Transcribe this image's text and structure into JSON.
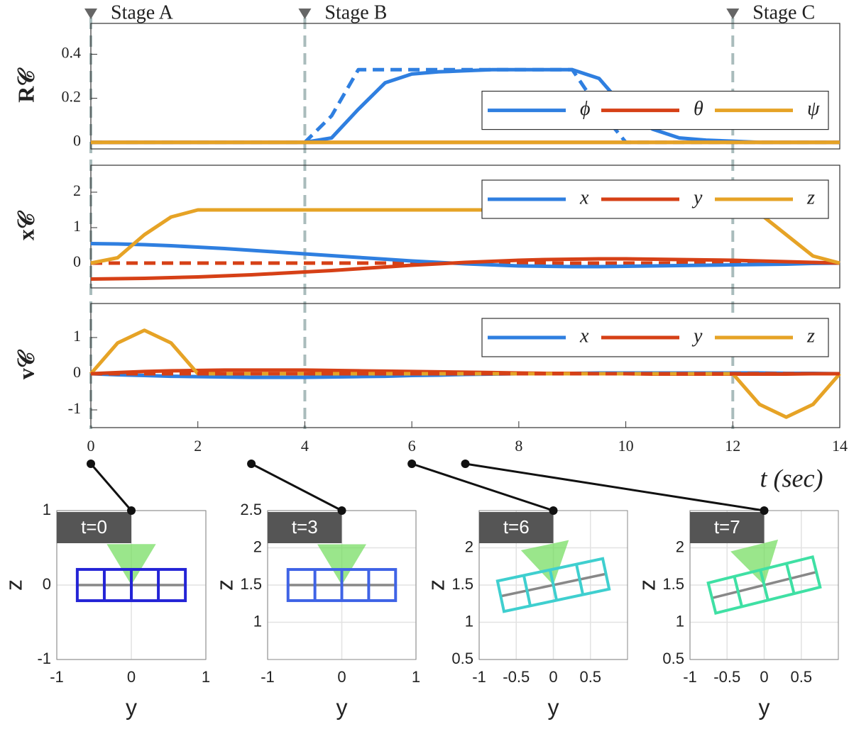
{
  "chart_data": [
    {
      "type": "line",
      "ylabel": "R𝒞",
      "xlim": [
        0,
        14
      ],
      "ylim": [
        -0.03,
        0.54
      ],
      "yticks": [
        0,
        0.2,
        0.4
      ],
      "legend": "center right",
      "stages": [
        {
          "label": "Stage A",
          "t": 0
        },
        {
          "label": "Stage B",
          "t": 4
        },
        {
          "label": "Stage C",
          "t": 12
        }
      ],
      "x": [
        0,
        0.5,
        1,
        1.5,
        2,
        2.5,
        3,
        3.5,
        4,
        4.5,
        5,
        5.5,
        6,
        6.5,
        7,
        7.5,
        8,
        8.5,
        9,
        9.5,
        10,
        10.5,
        11,
        11.5,
        12,
        12.5,
        13,
        13.5,
        14
      ],
      "series": [
        {
          "name": "ϕ",
          "color": "#2f7fe0",
          "values": [
            0,
            0,
            0,
            0,
            0,
            0,
            0,
            0,
            0,
            0.02,
            0.15,
            0.27,
            0.31,
            0.32,
            0.325,
            0.33,
            0.33,
            0.33,
            0.33,
            0.29,
            0.15,
            0.06,
            0.02,
            0.01,
            0.005,
            0,
            0,
            0,
            0
          ]
        },
        {
          "color": "#2f7fe0",
          "dashed": true,
          "values": [
            0,
            0,
            0,
            0,
            0,
            0,
            0,
            0,
            0,
            0.12,
            0.33,
            0.33,
            0.33,
            0.33,
            0.33,
            0.33,
            0.33,
            0.33,
            0.33,
            0.15,
            0,
            0,
            0,
            0,
            0,
            0,
            0,
            0,
            0
          ]
        },
        {
          "name": "θ",
          "color": "#d64016",
          "values": [
            0,
            0,
            0,
            0,
            0,
            0,
            0,
            0,
            0,
            0,
            0,
            0,
            0,
            0,
            0,
            0,
            0,
            0,
            0,
            0,
            0,
            0,
            0,
            0,
            0,
            0,
            0,
            0,
            0
          ]
        },
        {
          "name": "ψ",
          "color": "#e6a326",
          "values": [
            0,
            0,
            0,
            0,
            0,
            0,
            0,
            0,
            0,
            0,
            0,
            0,
            0,
            0,
            0,
            0,
            0,
            0,
            0,
            0,
            0,
            0,
            0,
            0,
            0,
            0,
            0,
            0,
            0
          ]
        }
      ]
    },
    {
      "type": "line",
      "ylabel": "x𝒞",
      "xlim": [
        0,
        14
      ],
      "ylim": [
        -0.7,
        2.76
      ],
      "yticks": [
        0,
        1,
        2
      ],
      "legend": "upper right",
      "x": [
        0,
        0.5,
        1,
        1.5,
        2,
        2.5,
        3,
        3.5,
        4,
        4.5,
        5,
        5.5,
        6,
        6.5,
        7,
        7.5,
        8,
        8.5,
        9,
        9.5,
        10,
        10.5,
        11,
        11.5,
        12,
        12.5,
        13,
        13.5,
        14
      ],
      "series": [
        {
          "color": "#d64016",
          "dashed": true,
          "values": [
            0,
            0,
            0,
            0,
            0,
            0,
            0,
            0,
            0,
            0,
            0,
            0,
            0,
            0,
            0,
            0,
            0,
            0,
            0,
            0,
            0,
            0,
            0,
            0,
            0,
            0,
            0,
            0,
            0
          ]
        },
        {
          "name": "x",
          "color": "#2f7fe0",
          "values": [
            0.55,
            0.54,
            0.52,
            0.49,
            0.45,
            0.41,
            0.36,
            0.31,
            0.26,
            0.21,
            0.16,
            0.11,
            0.06,
            0.02,
            -0.02,
            -0.05,
            -0.08,
            -0.09,
            -0.1,
            -0.1,
            -0.09,
            -0.08,
            -0.07,
            -0.06,
            -0.05,
            -0.04,
            -0.03,
            -0.01,
            0
          ]
        },
        {
          "name": "y",
          "color": "#d64016",
          "values": [
            -0.45,
            -0.44,
            -0.43,
            -0.41,
            -0.39,
            -0.36,
            -0.33,
            -0.29,
            -0.25,
            -0.21,
            -0.16,
            -0.11,
            -0.06,
            -0.02,
            0.02,
            0.05,
            0.08,
            0.1,
            0.11,
            0.12,
            0.12,
            0.11,
            0.1,
            0.09,
            0.08,
            0.06,
            0.04,
            0.02,
            0
          ]
        },
        {
          "name": "z",
          "color": "#e6a326",
          "values": [
            0,
            0.15,
            0.8,
            1.3,
            1.5,
            1.5,
            1.5,
            1.5,
            1.5,
            1.5,
            1.5,
            1.5,
            1.5,
            1.5,
            1.5,
            1.5,
            1.5,
            1.5,
            1.5,
            1.5,
            1.5,
            1.5,
            1.5,
            1.5,
            1.5,
            1.4,
            0.8,
            0.2,
            0
          ]
        }
      ]
    },
    {
      "type": "line",
      "ylabel": "v𝒞",
      "xlabel": "t (sec)",
      "xlim": [
        0,
        14
      ],
      "xticks": [
        0,
        2,
        4,
        6,
        8,
        10,
        12,
        14
      ],
      "ylim": [
        -1.49,
        1.94
      ],
      "yticks": [
        -1,
        0,
        1
      ],
      "legend": "upper right",
      "x": [
        0,
        0.5,
        1,
        1.5,
        2,
        2.5,
        3,
        3.5,
        4,
        4.5,
        5,
        5.5,
        6,
        6.5,
        7,
        7.5,
        8,
        8.5,
        9,
        9.5,
        10,
        10.5,
        11,
        11.5,
        12,
        12.5,
        13,
        13.5,
        14
      ],
      "series": [
        {
          "name": "x",
          "color": "#2f7fe0",
          "values": [
            0,
            -0.03,
            -0.05,
            -0.07,
            -0.08,
            -0.09,
            -0.1,
            -0.1,
            -0.1,
            -0.09,
            -0.08,
            -0.07,
            -0.05,
            -0.04,
            -0.02,
            -0.01,
            0,
            0.01,
            0.01,
            0.02,
            0.02,
            0.02,
            0.02,
            0.02,
            0.02,
            0.02,
            0.01,
            0.01,
            0
          ]
        },
        {
          "name": "y",
          "color": "#d64016",
          "values": [
            0,
            0.03,
            0.06,
            0.08,
            0.09,
            0.1,
            0.1,
            0.1,
            0.1,
            0.09,
            0.08,
            0.07,
            0.06,
            0.05,
            0.04,
            0.03,
            0.02,
            0.01,
            0.01,
            0,
            0,
            -0.01,
            -0.01,
            -0.01,
            -0.01,
            -0.01,
            -0.01,
            0,
            0
          ]
        },
        {
          "name": "z",
          "color": "#e6a326",
          "values": [
            0,
            0.85,
            1.2,
            0.85,
            0,
            0,
            0,
            0,
            0,
            0,
            0,
            0,
            0,
            0,
            0,
            0,
            0,
            0,
            0,
            0,
            0,
            0,
            0,
            0,
            0,
            -0.85,
            -1.2,
            -0.85,
            0
          ]
        },
        {
          "color": "#d64016",
          "dashed": true,
          "values": [
            0,
            0,
            0,
            0,
            0,
            0,
            0,
            0,
            0,
            0,
            0,
            0,
            0,
            0,
            0,
            0,
            0,
            0,
            0,
            0,
            0,
            0,
            0,
            0,
            0,
            0,
            0,
            0,
            0
          ]
        }
      ]
    },
    {
      "type": "pose",
      "title": "t=0",
      "t": 0,
      "xlabel": "y",
      "ylabel": "z",
      "xlim": [
        -1,
        1
      ],
      "ylim": [
        -1,
        1
      ],
      "xticks": [
        -1,
        0,
        1
      ],
      "yticks": [
        -1,
        0,
        1
      ],
      "grid": true,
      "body": {
        "y": 0,
        "z": 0,
        "roll": 0,
        "color": "#2424d6"
      }
    },
    {
      "type": "pose",
      "title": "t=3",
      "t": 3,
      "xlabel": "y",
      "ylabel": "z",
      "xlim": [
        -1,
        1
      ],
      "ylim": [
        0.5,
        2.5
      ],
      "xticks": [
        -1,
        0,
        1
      ],
      "yticks": [
        1,
        1.5,
        2,
        2.5
      ],
      "grid": true,
      "body": {
        "y": 0,
        "z": 1.5,
        "roll": 0,
        "color": "#3f63e6"
      }
    },
    {
      "type": "pose",
      "title": "t=6",
      "t": 6,
      "xlabel": "y",
      "ylabel": "z",
      "xlim": [
        -1,
        1
      ],
      "ylim": [
        0.5,
        2.5
      ],
      "xticks": [
        -1,
        -0.5,
        0,
        0.5
      ],
      "yticks": [
        0.5,
        1,
        1.5,
        2
      ],
      "grid": true,
      "body": {
        "y": 0,
        "z": 1.5,
        "roll": 12,
        "color": "#3fcfcf"
      }
    },
    {
      "type": "pose",
      "title": "t=7",
      "t": 7,
      "xlabel": "y",
      "ylabel": "z",
      "xlim": [
        -1,
        1
      ],
      "ylim": [
        0.5,
        2.5
      ],
      "xticks": [
        -1,
        -0.5,
        0,
        0.5
      ],
      "yticks": [
        0.5,
        1,
        1.5,
        2
      ],
      "grid": true,
      "body": {
        "y": 0,
        "z": 1.5,
        "roll": 14,
        "color": "#3fe0a4"
      }
    }
  ]
}
